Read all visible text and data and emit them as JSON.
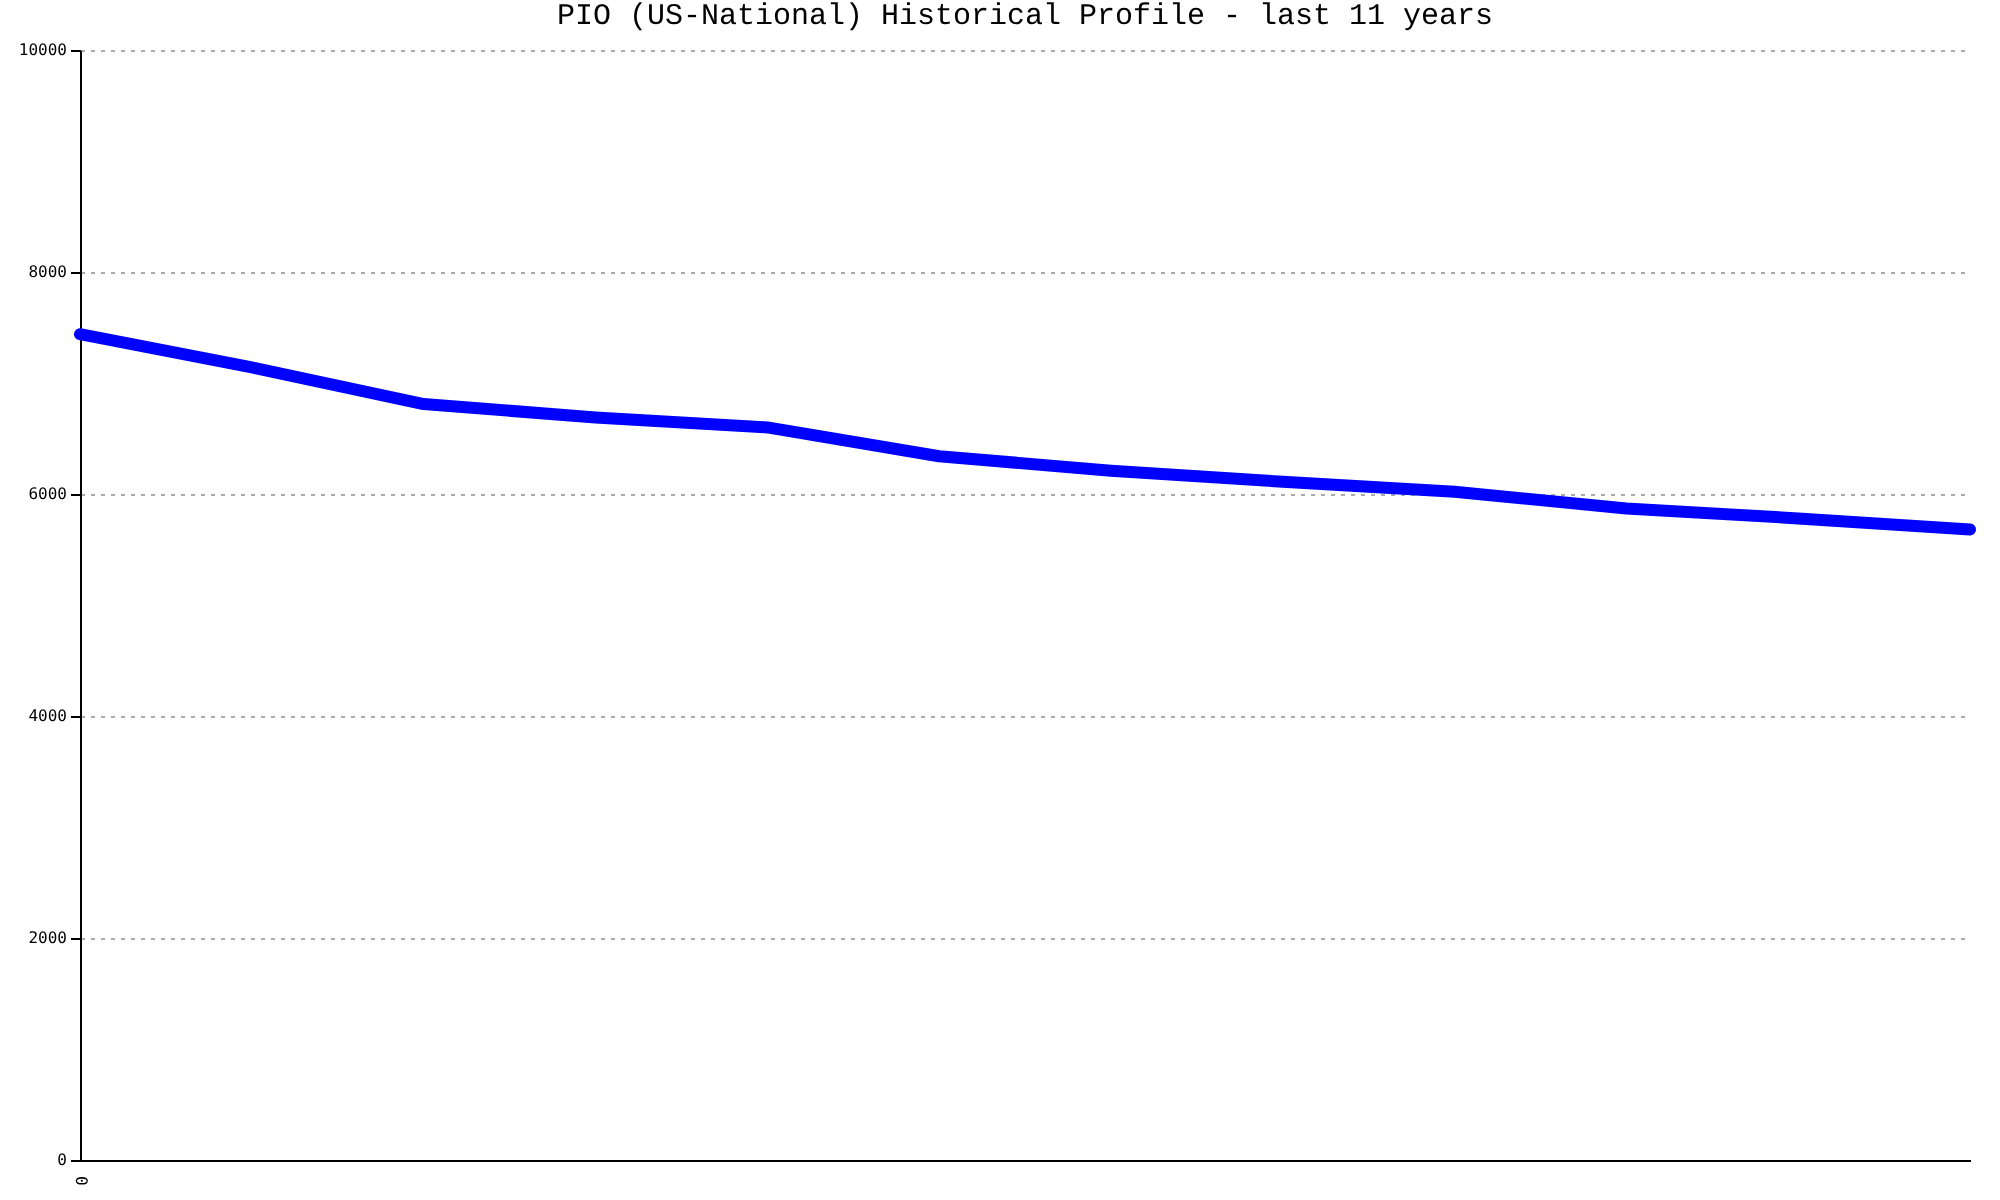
{
  "chart_data": {
    "type": "line",
    "title": "PIO (US-National) Historical Profile - last 11 years",
    "categories": [
      null,
      null,
      null,
      null,
      null,
      null,
      null,
      null,
      null,
      null,
      null,
      null
    ],
    "series": [
      {
        "color": "#0000ff",
        "values": [
          7440,
          7140,
          6810,
          6690,
          6600,
          6340,
          6210,
          6110,
          6020,
          5870,
          5780,
          5680
        ]
      }
    ],
    "annotations": [
      "0"
    ],
    "ylim": [
      0,
      10000
    ],
    "yticks": [
      0,
      2000,
      4000,
      6000,
      8000,
      10000
    ],
    "grid": "y",
    "line_style": "solid"
  }
}
